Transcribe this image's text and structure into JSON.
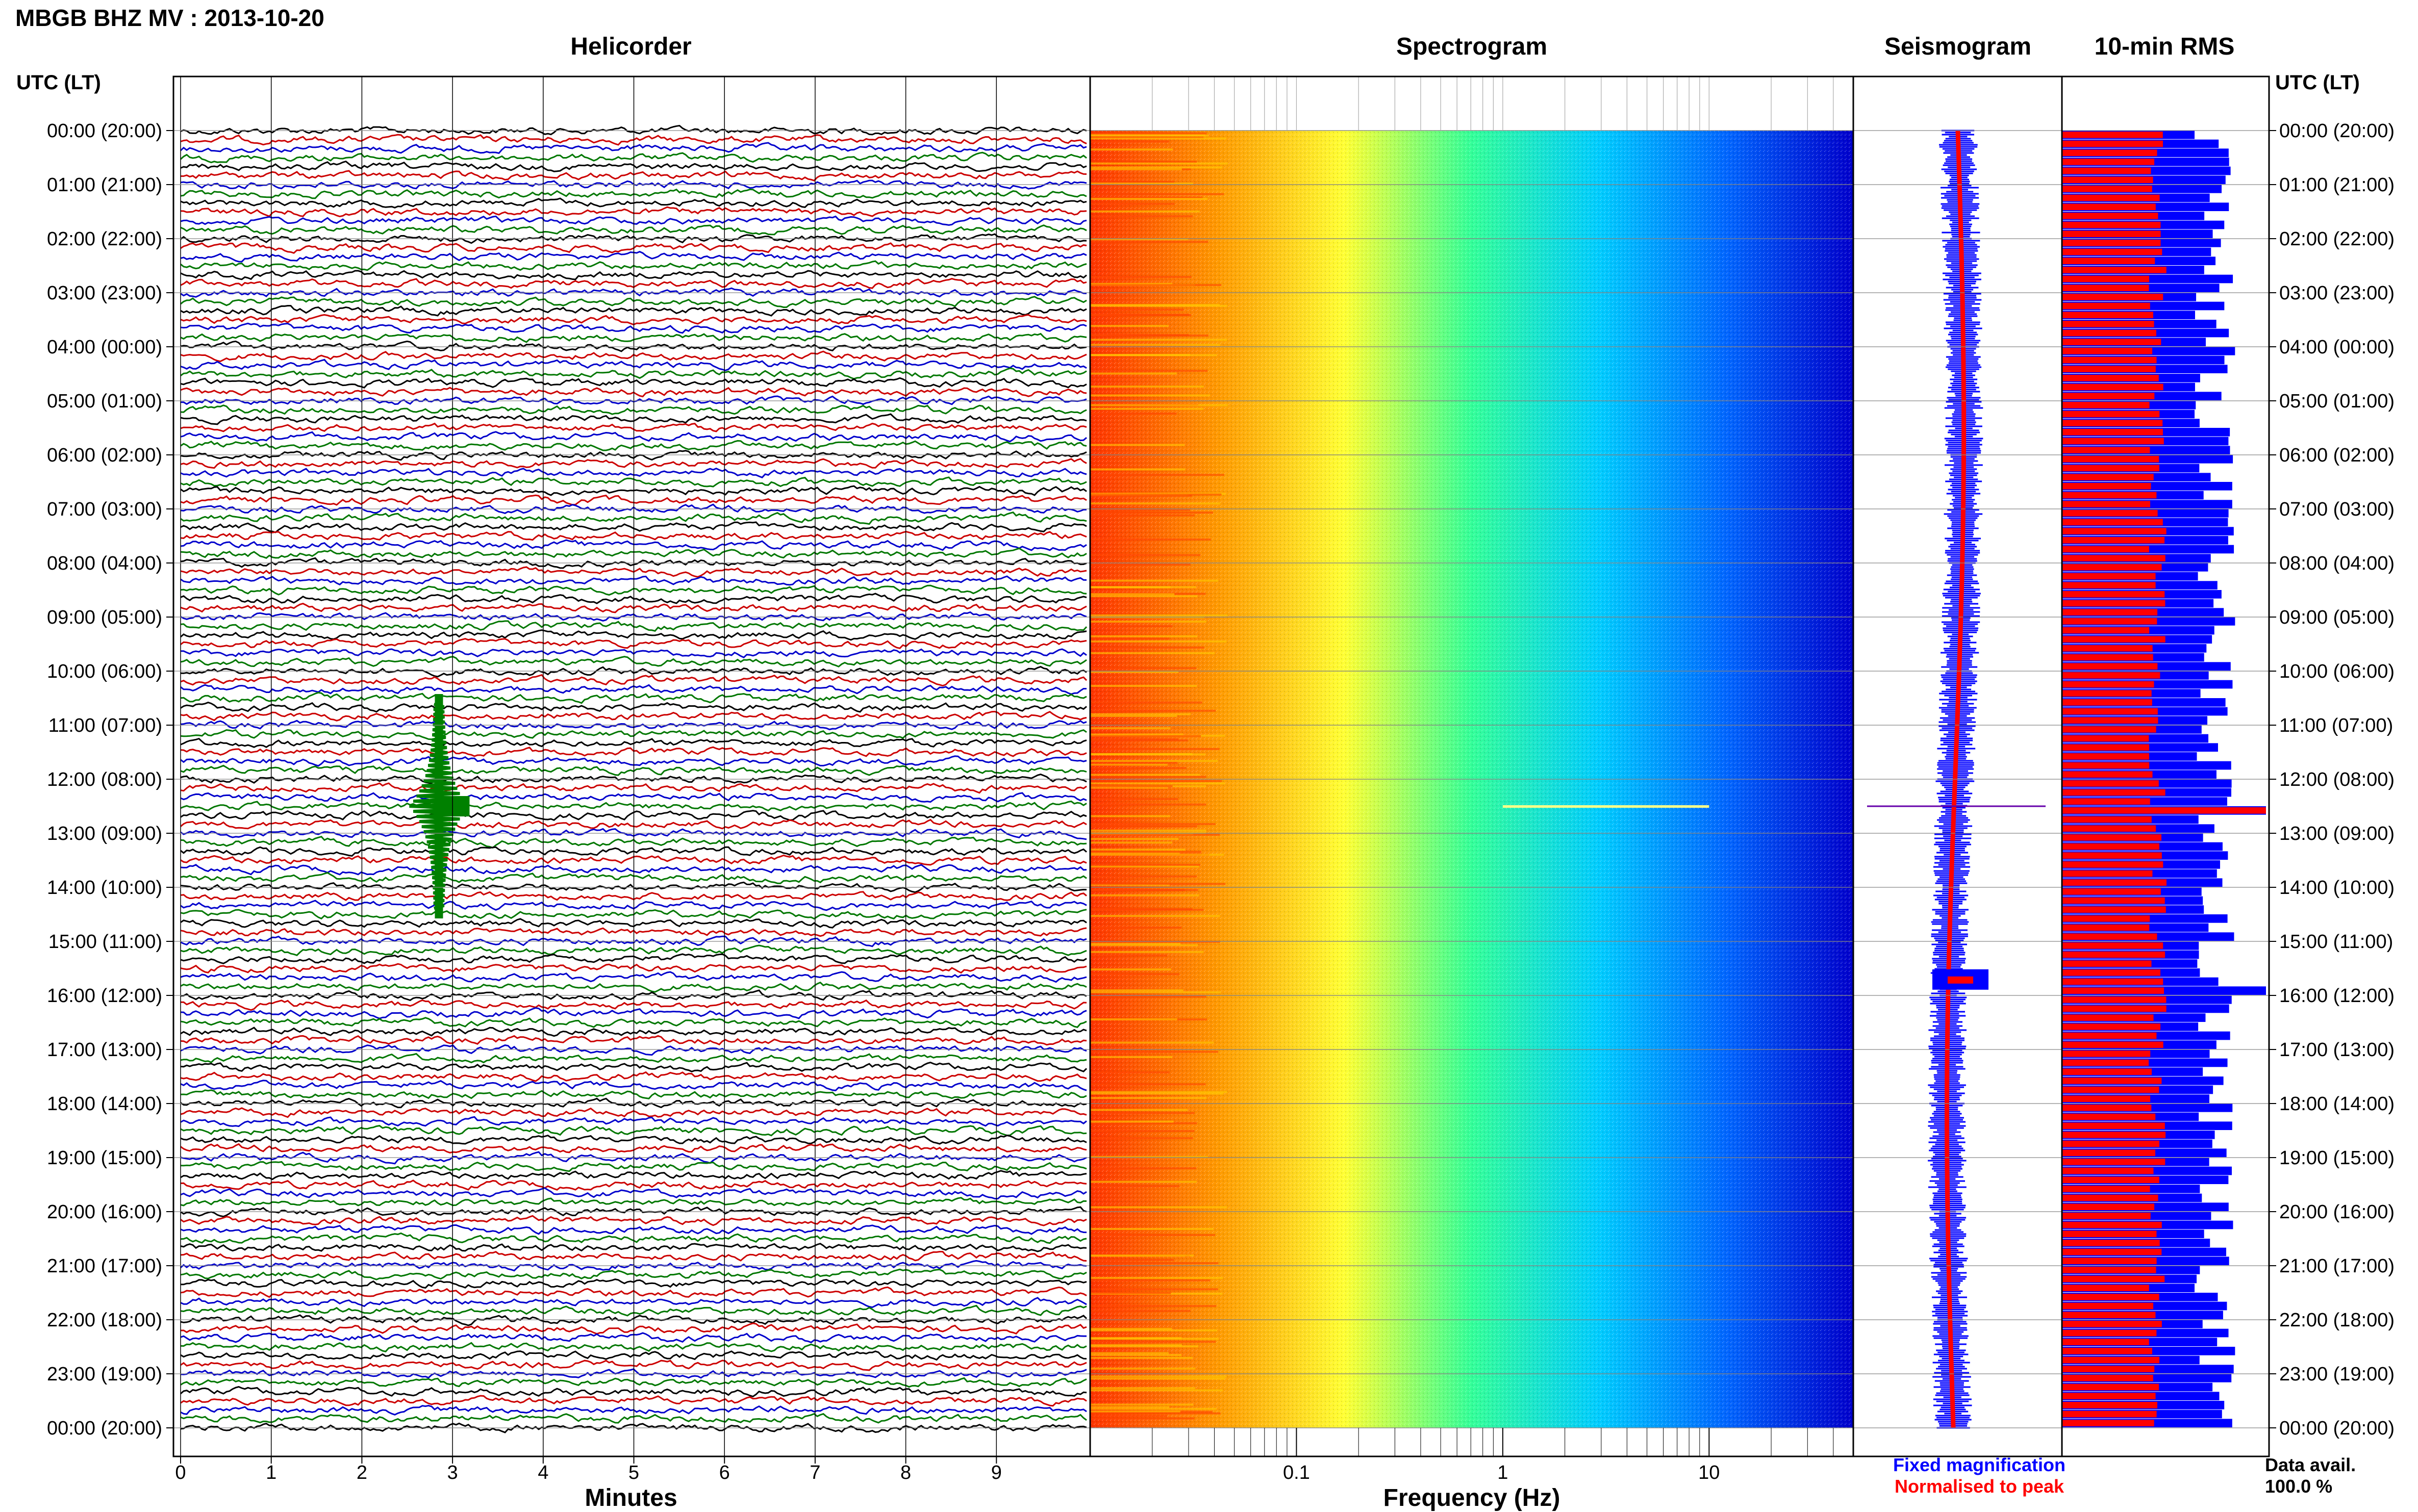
{
  "header": {
    "title": "MBGB BHZ MV : 2013-10-20",
    "utc_label": "UTC (LT)"
  },
  "panels": {
    "helicorder": "Helicorder",
    "spectrogram": "Spectrogram",
    "seismogram": "Seismogram",
    "rms": "10-min RMS"
  },
  "colors": {
    "trace_cycle": [
      "#000000",
      "#cc0000",
      "#0000cc",
      "#007700"
    ],
    "event_trace": "#008000",
    "fixed": "#0000ff",
    "normalised": "#ff0000"
  },
  "chart_data": [
    {
      "type": "line",
      "panel": "Helicorder",
      "xlabel": "Minutes",
      "x_ticks": [
        0,
        1,
        2,
        3,
        4,
        5,
        6,
        7,
        8,
        9
      ],
      "xlim": [
        0,
        10
      ],
      "lines_per_hour": 6,
      "time_labels": [
        "00:00 (20:00)",
        "01:00 (21:00)",
        "02:00 (22:00)",
        "03:00 (23:00)",
        "04:00 (00:00)",
        "05:00 (01:00)",
        "06:00 (02:00)",
        "07:00 (03:00)",
        "08:00 (04:00)",
        "09:00 (05:00)",
        "10:00 (06:00)",
        "11:00 (07:00)",
        "12:00 (08:00)",
        "13:00 (09:00)",
        "14:00 (10:00)",
        "15:00 (11:00)",
        "16:00 (12:00)",
        "17:00 (13:00)",
        "18:00 (14:00)",
        "19:00 (15:00)",
        "20:00 (16:00)",
        "21:00 (17:00)",
        "22:00 (18:00)",
        "23:00 (19:00)",
        "00:00 (20:00)"
      ],
      "events": [
        {
          "hour": 12.5,
          "minute": 2.85
        }
      ],
      "grid": true
    },
    {
      "type": "heatmap",
      "panel": "Spectrogram",
      "xlabel": "Frequency (Hz)",
      "x_scale": "log",
      "xlim": [
        0.01,
        50
      ],
      "x_ticks": [
        0.1,
        1,
        10
      ],
      "x_tick_labels": [
        "0.1",
        "1",
        "10"
      ],
      "colormap": [
        "#ff3300",
        "#ff9900",
        "#ffff33",
        "#33ff99",
        "#00ccff",
        "#0066ff",
        "#0000cc"
      ],
      "spectral_line": {
        "hour": 12.5,
        "freq_range": [
          1,
          10
        ]
      }
    },
    {
      "type": "line",
      "panel": "Seismogram",
      "series": [
        {
          "name": "Fixed magnification",
          "color": "#0000ff"
        },
        {
          "name": "Normalised to peak",
          "color": "#ff0000"
        }
      ]
    },
    {
      "type": "bar",
      "panel": "10-min RMS",
      "orientation": "horizontal",
      "series": [
        {
          "name": "Fixed magnification",
          "color": "#0000ff"
        },
        {
          "name": "Normalised to peak",
          "color": "#ff0000"
        }
      ],
      "spikes_hour": [
        12.5,
        15.8
      ]
    }
  ],
  "legend": {
    "fixed": "Fixed magnification",
    "normalised": "Normalised to peak"
  },
  "availability": {
    "label": "Data avail.",
    "value": "100.0 %"
  }
}
